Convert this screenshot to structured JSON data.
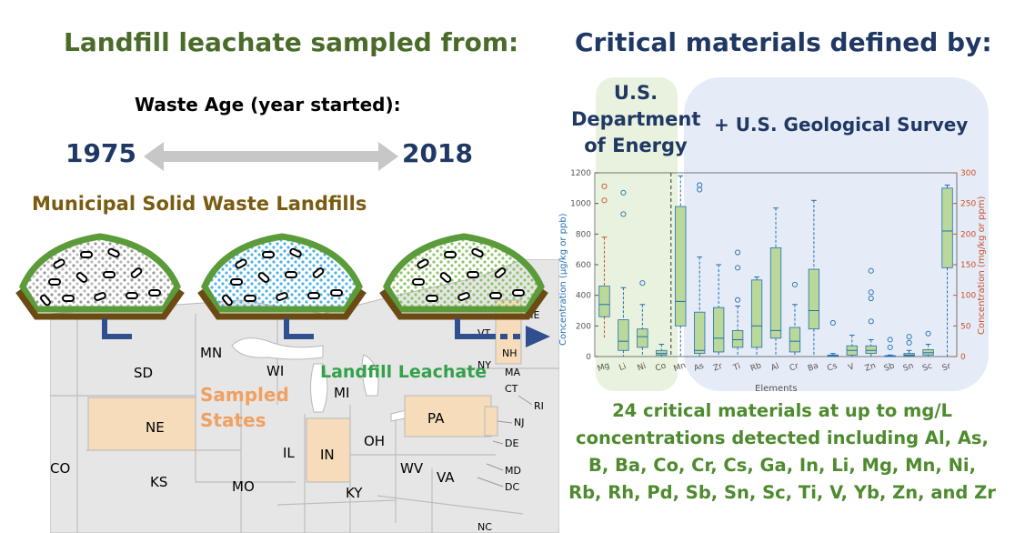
{
  "left_title": "Landfill leachate sampled from:",
  "right_title": "Critical materials defined by:",
  "waste_age_label": "Waste Age  (year started):",
  "year_start": "1975",
  "year_end": "2018",
  "msw_label": "Municipal Solid Waste Landfills",
  "sampled_states": [
    "Sampled",
    "States"
  ],
  "leachate_label": "Landfill Leachate",
  "doe_label": [
    "U.S.",
    "Department",
    "of Energy"
  ],
  "usgs_label": "+ U.S. Geological Survey",
  "summary": [
    "24 critical materials at up to mg/L",
    "concentrations detected including Al, As,",
    "B, Ba, Co, Cr, Cs, Ga, In, Li, Mg, Mn, Ni,",
    "Rb, Rh, Pd, Sb, Sn, Sc, Ti, V, Yb, Zn, and Zr"
  ],
  "map_states": [
    "SD",
    "NE",
    "KS",
    "MO",
    "MN",
    "WI",
    "MI",
    "IL",
    "IN",
    "OH",
    "WV",
    "VA",
    "KY",
    "PA",
    "NJ",
    "DE",
    "MD",
    "DC",
    "NY",
    "CT",
    "RI",
    "MA",
    "NH",
    "ME",
    "VT",
    "NC",
    "CO"
  ],
  "colors": {
    "left_title": "#4a6b2a",
    "right_title": "#1f3864",
    "msw": "#7a5c10",
    "sampled": "#f0a060",
    "leachate": "#33a14a",
    "doe_panel": "#e9f2de",
    "usgs_panel": "#e6ecf7",
    "box_fill": "#b9d89a",
    "box_edge": "#1f6fb2",
    "right_axis": "#c9502a",
    "arrow_blue": "#2f4f8f"
  },
  "chart_data": {
    "type": "box",
    "xlabel": "Elements",
    "ylabel_left": "Concentration (μg/kg or ppb)",
    "ylabel_right": "Concentration (mg/kg or ppm)",
    "ylim_left": [
      0,
      1200
    ],
    "yticks_left": [
      0,
      200,
      400,
      600,
      800,
      1000,
      1200
    ],
    "ylim_right": [
      0,
      300
    ],
    "yticks_right": [
      0,
      50,
      100,
      150,
      200,
      250,
      300
    ],
    "categories": [
      "Mg",
      "Li",
      "Ni",
      "Co",
      "Mn",
      "As",
      "Zr",
      "Ti",
      "Rb",
      "Al",
      "Cr",
      "Ba",
      "Cs",
      "V",
      "Zn",
      "Sb",
      "Sn",
      "Sc",
      "Sr"
    ],
    "right_axis_elements": [
      "Mg",
      "Sr"
    ],
    "boxes": [
      {
        "el": "Mg",
        "axis": "right",
        "min": 30,
        "q1": 65,
        "med": 85,
        "q3": 115,
        "max": 195,
        "outliers": [
          255,
          278
        ]
      },
      {
        "el": "Li",
        "axis": "left",
        "min": 0,
        "q1": 40,
        "med": 100,
        "q3": 240,
        "max": 450,
        "outliers": [
          930,
          1070
        ]
      },
      {
        "el": "Ni",
        "axis": "left",
        "min": 0,
        "q1": 60,
        "med": 130,
        "q3": 180,
        "max": 340,
        "outliers": [
          480
        ]
      },
      {
        "el": "Co",
        "axis": "left",
        "min": 0,
        "q1": 10,
        "med": 20,
        "q3": 40,
        "max": 80,
        "outliers": []
      },
      {
        "el": "Mn",
        "axis": "left",
        "min": 0,
        "q1": 200,
        "med": 360,
        "q3": 980,
        "max": 1180,
        "outliers": []
      },
      {
        "el": "As",
        "axis": "left",
        "min": 0,
        "q1": 20,
        "med": 40,
        "q3": 290,
        "max": 650,
        "outliers": [
          1090,
          1120
        ]
      },
      {
        "el": "Zr",
        "axis": "left",
        "min": 0,
        "q1": 30,
        "med": 120,
        "q3": 320,
        "max": 600,
        "outliers": []
      },
      {
        "el": "Ti",
        "axis": "left",
        "min": 0,
        "q1": 60,
        "med": 110,
        "q3": 170,
        "max": 330,
        "outliers": [
          370,
          580,
          680
        ]
      },
      {
        "el": "Rb",
        "axis": "left",
        "min": 0,
        "q1": 60,
        "med": 200,
        "q3": 500,
        "max": 520,
        "outliers": []
      },
      {
        "el": "Al",
        "axis": "left",
        "min": 0,
        "q1": 120,
        "med": 170,
        "q3": 710,
        "max": 970,
        "outliers": []
      },
      {
        "el": "Cr",
        "axis": "left",
        "min": 0,
        "q1": 30,
        "med": 100,
        "q3": 190,
        "max": 340,
        "outliers": [
          470
        ]
      },
      {
        "el": "Ba",
        "axis": "left",
        "min": 0,
        "q1": 180,
        "med": 300,
        "q3": 570,
        "max": 1020,
        "outliers": []
      },
      {
        "el": "Cs",
        "axis": "left",
        "min": 0,
        "q1": 2,
        "med": 5,
        "q3": 10,
        "max": 20,
        "outliers": [
          220
        ]
      },
      {
        "el": "V",
        "axis": "left",
        "min": 0,
        "q1": 10,
        "med": 40,
        "q3": 70,
        "max": 140,
        "outliers": []
      },
      {
        "el": "Zn",
        "axis": "left",
        "min": 0,
        "q1": 20,
        "med": 40,
        "q3": 70,
        "max": 110,
        "outliers": [
          230,
          380,
          420,
          560
        ]
      },
      {
        "el": "Sb",
        "axis": "left",
        "min": 0,
        "q1": 1,
        "med": 3,
        "q3": 6,
        "max": 10,
        "outliers": [
          60,
          110
        ]
      },
      {
        "el": "Sn",
        "axis": "left",
        "min": 0,
        "q1": 5,
        "med": 10,
        "q3": 20,
        "max": 40,
        "outliers": [
          90,
          130
        ]
      },
      {
        "el": "Sc",
        "axis": "left",
        "min": 0,
        "q1": 10,
        "med": 25,
        "q3": 45,
        "max": 80,
        "outliers": [
          150
        ]
      },
      {
        "el": "Sr",
        "axis": "right",
        "min": 0,
        "q1": 145,
        "med": 205,
        "q3": 275,
        "max": 280,
        "outliers": []
      }
    ]
  }
}
